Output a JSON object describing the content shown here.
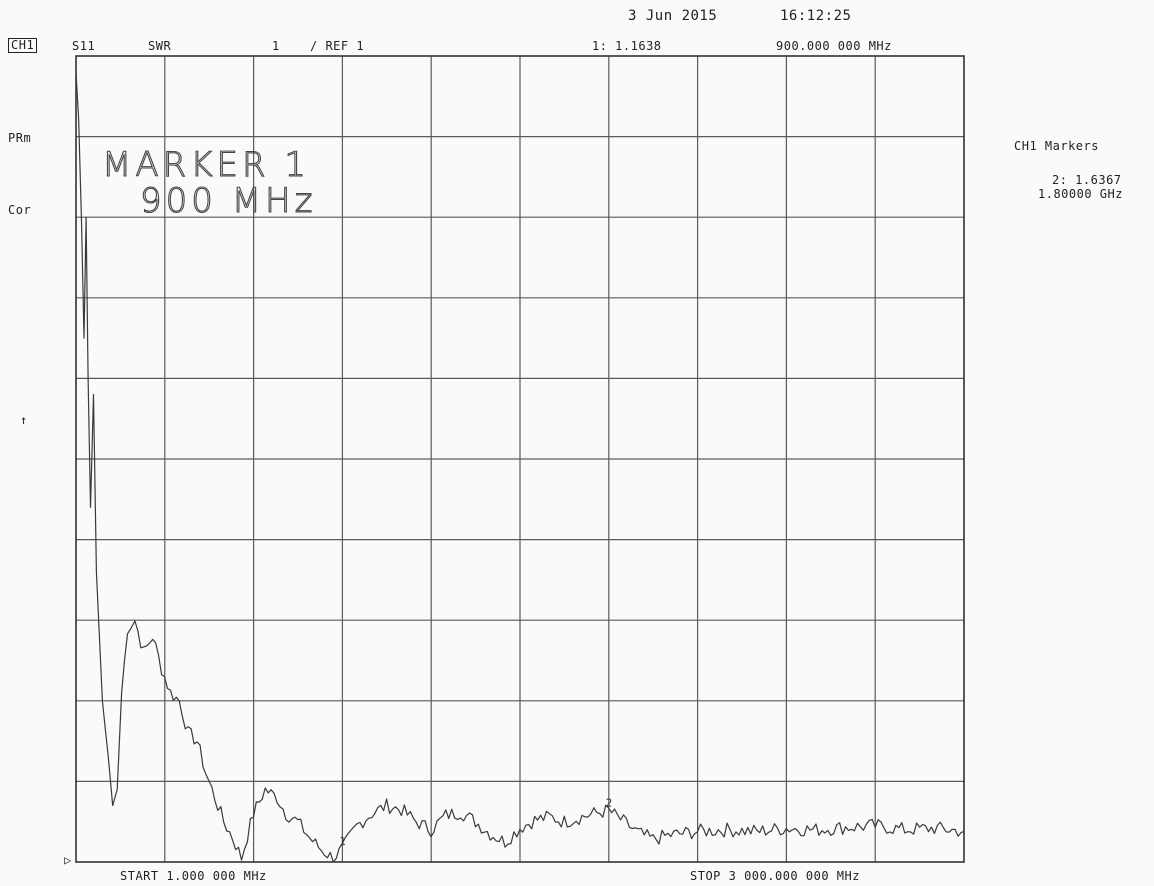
{
  "header": {
    "date": "3 Jun 2015",
    "time": "16:12:25",
    "channel": "CH1",
    "param": "S11",
    "format": "SWR",
    "scale": "1",
    "ref": "/ REF 1",
    "marker1_value": "1: 1.1638",
    "marker1_freq": "900.000 000 MHz"
  },
  "left_labels": {
    "prm": "PRm",
    "cor": "Cor",
    "arrow": "↑",
    "ref_marker": "▷"
  },
  "right_panel": {
    "title": "CH1 Markers",
    "marker2_value": "2: 1.6367",
    "marker2_freq": "1.80000 GHz"
  },
  "annotation": {
    "line1": "MARKER 1",
    "line2": "900 MHz"
  },
  "footer": {
    "start": "START  1.000 000 MHz",
    "stop": "STOP 3 000.000 000 MHz"
  },
  "chart_data": {
    "type": "line",
    "x_unit": "MHz",
    "xlim": [
      1,
      3000
    ],
    "ylim": [
      1,
      11
    ],
    "x_divisions": 10,
    "y_divisions": 10,
    "grid": true,
    "series": [
      {
        "points": [
          [
            1,
            10.8
          ],
          [
            10,
            10.2
          ],
          [
            20,
            8.9
          ],
          [
            28,
            7.5
          ],
          [
            35,
            9.0
          ],
          [
            42,
            7.0
          ],
          [
            50,
            5.4
          ],
          [
            60,
            6.8
          ],
          [
            70,
            4.6
          ],
          [
            80,
            3.8
          ],
          [
            90,
            3.0
          ],
          [
            110,
            2.3
          ],
          [
            125,
            1.7
          ],
          [
            140,
            1.9
          ],
          [
            155,
            3.1
          ],
          [
            175,
            3.9
          ],
          [
            200,
            4.0
          ],
          [
            230,
            3.6
          ],
          [
            260,
            3.8
          ],
          [
            290,
            3.4
          ],
          [
            320,
            3.1
          ],
          [
            350,
            3.0
          ],
          [
            380,
            2.6
          ],
          [
            410,
            2.5
          ],
          [
            440,
            2.1
          ],
          [
            470,
            1.8
          ],
          [
            500,
            1.5
          ],
          [
            530,
            1.3
          ],
          [
            560,
            1.05
          ],
          [
            600,
            1.6
          ],
          [
            640,
            1.9
          ],
          [
            680,
            1.8
          ],
          [
            710,
            1.6
          ],
          [
            750,
            1.5
          ],
          [
            790,
            1.3
          ],
          [
            830,
            1.15
          ],
          [
            870,
            1.05
          ],
          [
            900,
            1.16
          ],
          [
            950,
            1.45
          ],
          [
            1000,
            1.6
          ],
          [
            1050,
            1.7
          ],
          [
            1100,
            1.65
          ],
          [
            1150,
            1.5
          ],
          [
            1200,
            1.4
          ],
          [
            1250,
            1.58
          ],
          [
            1300,
            1.62
          ],
          [
            1350,
            1.5
          ],
          [
            1400,
            1.35
          ],
          [
            1450,
            1.25
          ],
          [
            1500,
            1.42
          ],
          [
            1550,
            1.52
          ],
          [
            1600,
            1.56
          ],
          [
            1650,
            1.5
          ],
          [
            1700,
            1.55
          ],
          [
            1750,
            1.6
          ],
          [
            1800,
            1.64
          ],
          [
            1850,
            1.5
          ],
          [
            1900,
            1.36
          ],
          [
            1950,
            1.28
          ],
          [
            2000,
            1.33
          ],
          [
            2100,
            1.38
          ],
          [
            2200,
            1.4
          ],
          [
            2300,
            1.38
          ],
          [
            2400,
            1.42
          ],
          [
            2500,
            1.4
          ],
          [
            2600,
            1.43
          ],
          [
            2700,
            1.45
          ],
          [
            2800,
            1.4
          ],
          [
            2900,
            1.42
          ],
          [
            3000,
            1.38
          ]
        ]
      }
    ],
    "markers": [
      {
        "id": "1",
        "x": 900,
        "y": 1.1638
      },
      {
        "id": "2",
        "x": 1800,
        "y": 1.6367
      }
    ]
  }
}
